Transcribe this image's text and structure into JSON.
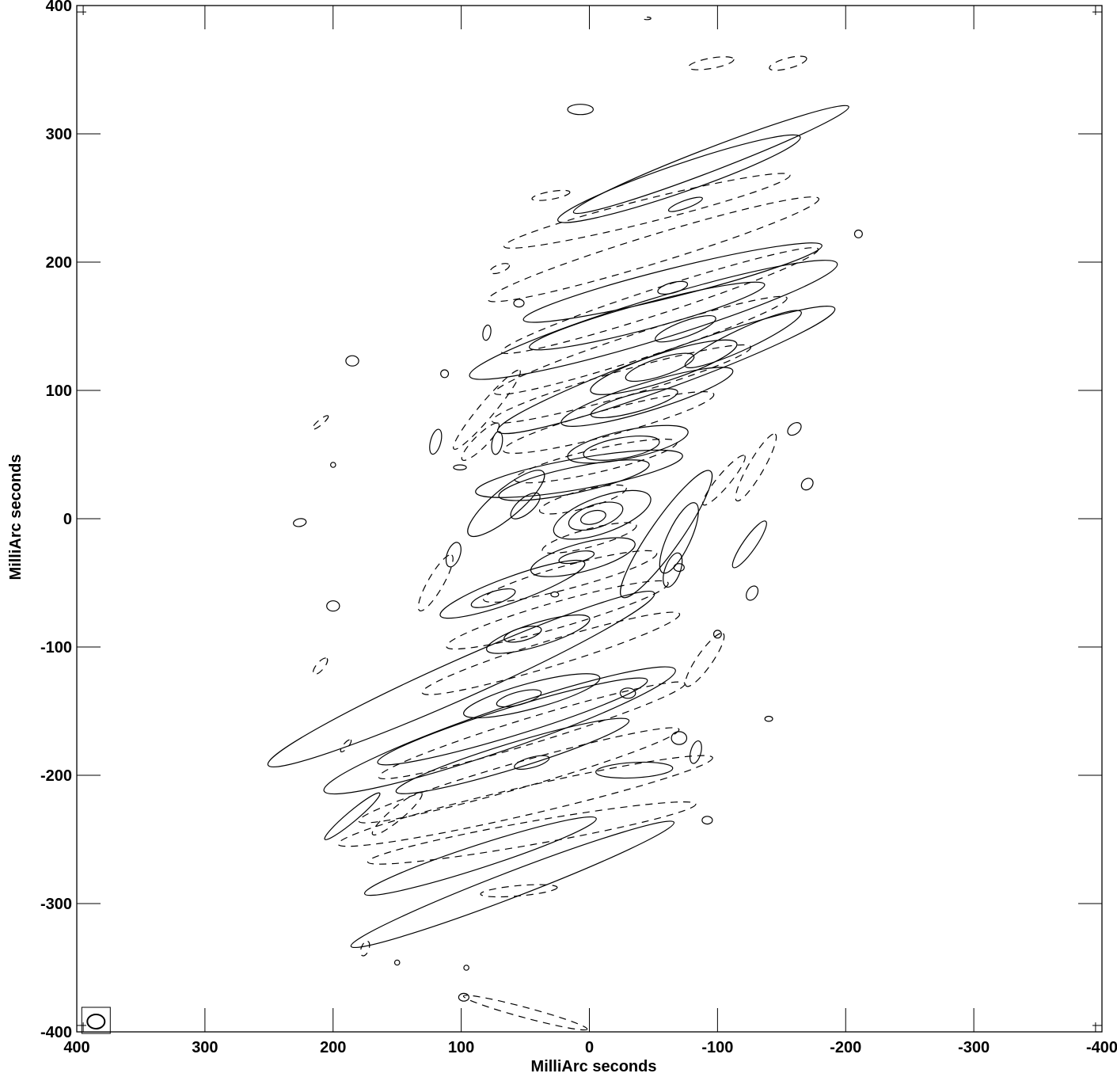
{
  "chart_data": {
    "type": "contour",
    "title": "",
    "xlabel": "MilliArc seconds",
    "ylabel": "MilliArc seconds",
    "xlim": [
      400,
      -400
    ],
    "ylim": [
      -400,
      400
    ],
    "x_ticks": [
      400,
      300,
      200,
      100,
      0,
      -100,
      -200,
      -300,
      -400
    ],
    "y_ticks": [
      -400,
      -300,
      -200,
      -100,
      0,
      100,
      200,
      300,
      400
    ],
    "x_tick_labels": [
      "400",
      "300",
      "200",
      "100",
      "0",
      "-100",
      "-200",
      "-300",
      "-400"
    ],
    "y_tick_labels": [
      "-400",
      "-300",
      "-200",
      "-100",
      "0",
      "100",
      "200",
      "300",
      "400"
    ],
    "beam": {
      "x": 385,
      "y": -392,
      "major": 14,
      "minor": 11
    },
    "contours": [
      {
        "level": "positive",
        "cx": -3,
        "cy": 1,
        "a": 10,
        "b": 5,
        "angle": -15
      },
      {
        "level": "positive",
        "cx": -5,
        "cy": 2,
        "a": 22,
        "b": 9,
        "angle": -18
      },
      {
        "level": "positive",
        "cx": -10,
        "cy": 3,
        "a": 40,
        "b": 14,
        "angle": -20
      },
      {
        "level": "positive",
        "cx": 10,
        "cy": -30,
        "a": 14,
        "b": 4,
        "angle": -12
      },
      {
        "level": "positive",
        "cx": 5,
        "cy": -30,
        "a": 42,
        "b": 11,
        "angle": -15
      },
      {
        "level": "positive",
        "cx": 12,
        "cy": 30,
        "a": 60,
        "b": 10,
        "angle": -12
      },
      {
        "level": "positive",
        "cx": 8,
        "cy": 35,
        "a": 82,
        "b": 12,
        "angle": -10
      },
      {
        "level": "positive",
        "cx": 50,
        "cy": 10,
        "a": 14,
        "b": 6,
        "angle": -40
      },
      {
        "level": "positive",
        "cx": 65,
        "cy": 12,
        "a": 38,
        "b": 11,
        "angle": -40
      },
      {
        "level": "positive",
        "cx": -70,
        "cy": -15,
        "a": 30,
        "b": 9,
        "angle": -65
      },
      {
        "level": "positive",
        "cx": -60,
        "cy": -12,
        "a": 60,
        "b": 12,
        "angle": -55
      },
      {
        "level": "positive",
        "cx": -25,
        "cy": 55,
        "a": 30,
        "b": 8,
        "angle": -10
      },
      {
        "level": "positive",
        "cx": -30,
        "cy": 58,
        "a": 48,
        "b": 11,
        "angle": -12
      },
      {
        "level": "positive",
        "cx": -35,
        "cy": 90,
        "a": 35,
        "b": 7,
        "angle": -15
      },
      {
        "level": "positive",
        "cx": -45,
        "cy": 95,
        "a": 70,
        "b": 11,
        "angle": -17
      },
      {
        "level": "positive",
        "cx": -55,
        "cy": 118,
        "a": 28,
        "b": 7,
        "angle": -18
      },
      {
        "level": "positive",
        "cx": -58,
        "cy": 118,
        "a": 60,
        "b": 11,
        "angle": -18
      },
      {
        "level": "positive",
        "cx": -60,
        "cy": 116,
        "a": 140,
        "b": 14,
        "angle": -20
      },
      {
        "level": "positive",
        "cx": -75,
        "cy": 148,
        "a": 25,
        "b": 6,
        "angle": -20
      },
      {
        "level": "positive",
        "cx": -45,
        "cy": 158,
        "a": 95,
        "b": 10,
        "angle": -15
      },
      {
        "level": "positive",
        "cx": -50,
        "cy": 155,
        "a": 150,
        "b": 16,
        "angle": -17
      },
      {
        "level": "positive",
        "cx": -65,
        "cy": 180,
        "a": 12,
        "b": 4,
        "angle": -15
      },
      {
        "level": "positive",
        "cx": -65,
        "cy": 184,
        "a": 120,
        "b": 11,
        "angle": -14
      },
      {
        "level": "positive",
        "cx": -70,
        "cy": 265,
        "a": 100,
        "b": 11,
        "angle": -19
      },
      {
        "level": "positive",
        "cx": -95,
        "cy": 280,
        "a": 115,
        "b": 9,
        "angle": -21
      },
      {
        "level": "positive",
        "cx": -75,
        "cy": 245,
        "a": 14,
        "b": 3,
        "angle": -20
      },
      {
        "level": "positive",
        "cx": 7,
        "cy": 319,
        "a": 10,
        "b": 4,
        "angle": 0
      },
      {
        "level": "positive",
        "cx": 55,
        "cy": -140,
        "a": 18,
        "b": 5,
        "angle": -15
      },
      {
        "level": "positive",
        "cx": 45,
        "cy": -138,
        "a": 55,
        "b": 10,
        "angle": -15
      },
      {
        "level": "positive",
        "cx": 52,
        "cy": -90,
        "a": 15,
        "b": 5,
        "angle": -15
      },
      {
        "level": "positive",
        "cx": 40,
        "cy": -90,
        "a": 42,
        "b": 9,
        "angle": -17
      },
      {
        "level": "positive",
        "cx": 75,
        "cy": -62,
        "a": 18,
        "b": 5,
        "angle": -18
      },
      {
        "level": "positive",
        "cx": 60,
        "cy": -55,
        "a": 60,
        "b": 10,
        "angle": -20
      },
      {
        "level": "positive",
        "cx": 45,
        "cy": -190,
        "a": 14,
        "b": 4,
        "angle": -15
      },
      {
        "level": "positive",
        "cx": 60,
        "cy": -185,
        "a": 95,
        "b": 10,
        "angle": -17
      },
      {
        "level": "positive",
        "cx": 60,
        "cy": -158,
        "a": 110,
        "b": 11,
        "angle": -17
      },
      {
        "level": "positive",
        "cx": 70,
        "cy": -165,
        "a": 145,
        "b": 16,
        "angle": -19
      },
      {
        "level": "positive",
        "cx": 100,
        "cy": -125,
        "a": 165,
        "b": 15,
        "angle": -24
      },
      {
        "level": "positive",
        "cx": -35,
        "cy": -196,
        "a": 30,
        "b": 6,
        "angle": -3
      },
      {
        "level": "positive",
        "cx": 85,
        "cy": -263,
        "a": 95,
        "b": 9,
        "angle": -18
      },
      {
        "level": "positive",
        "cx": 60,
        "cy": -285,
        "a": 135,
        "b": 10,
        "angle": -21
      },
      {
        "level": "positive",
        "cx": 185,
        "cy": -232,
        "a": 28,
        "b": 4,
        "angle": -40
      },
      {
        "level": "positive",
        "cx": 185,
        "cy": 123,
        "a": 5,
        "b": 4,
        "angle": 0
      },
      {
        "level": "positive",
        "cx": 226,
        "cy": -3,
        "a": 5,
        "b": 3,
        "angle": -10
      },
      {
        "level": "positive",
        "cx": 200,
        "cy": -68,
        "a": 5,
        "b": 4,
        "angle": 0
      },
      {
        "level": "positive",
        "cx": 120,
        "cy": 60,
        "a": 10,
        "b": 4,
        "angle": -75
      },
      {
        "level": "positive",
        "cx": 106,
        "cy": -28,
        "a": 10,
        "b": 5,
        "angle": -70
      },
      {
        "level": "positive",
        "cx": 72,
        "cy": 59,
        "a": 9,
        "b": 4,
        "angle": -80
      },
      {
        "level": "positive",
        "cx": 55,
        "cy": 168,
        "a": 4,
        "b": 3,
        "angle": 0
      },
      {
        "level": "positive",
        "cx": 80,
        "cy": 145,
        "a": 6,
        "b": 3,
        "angle": -80
      },
      {
        "level": "positive",
        "cx": -120,
        "cy": 140,
        "a": 50,
        "b": 8,
        "angle": -25
      },
      {
        "level": "positive",
        "cx": -125,
        "cy": -20,
        "a": 22,
        "b": 5,
        "angle": -55
      },
      {
        "level": "positive",
        "cx": -127,
        "cy": -58,
        "a": 6,
        "b": 4,
        "angle": -60
      },
      {
        "level": "positive",
        "cx": -160,
        "cy": 70,
        "a": 6,
        "b": 4,
        "angle": -40
      },
      {
        "level": "positive",
        "cx": -170,
        "cy": 27,
        "a": 5,
        "b": 4,
        "angle": -45
      },
      {
        "level": "positive",
        "cx": -210,
        "cy": 222,
        "a": 3,
        "b": 3,
        "angle": 0
      },
      {
        "level": "positive",
        "cx": -140,
        "cy": -156,
        "a": 3,
        "b": 2,
        "angle": 0
      },
      {
        "level": "positive",
        "cx": -92,
        "cy": -235,
        "a": 4,
        "b": 3,
        "angle": 0
      },
      {
        "level": "positive",
        "cx": -70,
        "cy": -171,
        "a": 6,
        "b": 5,
        "angle": 0
      },
      {
        "level": "positive",
        "cx": -83,
        "cy": -182,
        "a": 9,
        "b": 4,
        "angle": -75
      },
      {
        "level": "positive",
        "cx": -30,
        "cy": -136,
        "a": 6,
        "b": 4,
        "angle": 0
      },
      {
        "level": "positive",
        "cx": -100,
        "cy": -90,
        "a": 3,
        "b": 3,
        "angle": 0
      },
      {
        "level": "positive",
        "cx": -70,
        "cy": -38,
        "a": 4,
        "b": 3,
        "angle": 0
      },
      {
        "level": "positive",
        "cx": -65,
        "cy": -40,
        "a": 14,
        "b": 6,
        "angle": -70
      },
      {
        "level": "positive",
        "cx": 27,
        "cy": -59,
        "a": 3,
        "b": 2,
        "angle": 0
      },
      {
        "level": "positive",
        "cx": 101,
        "cy": 40,
        "a": 5,
        "b": 2,
        "angle": 0
      },
      {
        "level": "positive",
        "cx": 113,
        "cy": 113,
        "a": 3,
        "b": 3,
        "angle": 0
      },
      {
        "level": "positive",
        "cx": 150,
        "cy": -346,
        "a": 2,
        "b": 2,
        "angle": 0
      },
      {
        "level": "positive",
        "cx": 96,
        "cy": -350,
        "a": 2,
        "b": 2,
        "angle": 0
      },
      {
        "level": "positive",
        "cx": 98,
        "cy": -373,
        "a": 4,
        "b": 3,
        "angle": 0
      },
      {
        "level": "positive",
        "cx": 200,
        "cy": 42,
        "a": 2,
        "b": 2,
        "angle": 0
      },
      {
        "level": "negative",
        "cx": 5,
        "cy": 15,
        "a": 35,
        "b": 7,
        "angle": -15
      },
      {
        "level": "negative",
        "cx": 0,
        "cy": -15,
        "a": 38,
        "b": 7,
        "angle": -15
      },
      {
        "level": "negative",
        "cx": -5,
        "cy": 45,
        "a": 65,
        "b": 9,
        "angle": -13
      },
      {
        "level": "negative",
        "cx": 15,
        "cy": -45,
        "a": 70,
        "b": 9,
        "angle": -15
      },
      {
        "level": "negative",
        "cx": -15,
        "cy": 75,
        "a": 85,
        "b": 10,
        "angle": -15
      },
      {
        "level": "negative",
        "cx": 25,
        "cy": -75,
        "a": 90,
        "b": 10,
        "angle": -16
      },
      {
        "level": "negative",
        "cx": -25,
        "cy": 105,
        "a": 105,
        "b": 10,
        "angle": -16
      },
      {
        "level": "negative",
        "cx": 30,
        "cy": -105,
        "a": 105,
        "b": 10,
        "angle": -17
      },
      {
        "level": "negative",
        "cx": -40,
        "cy": 135,
        "a": 120,
        "b": 10,
        "angle": -18
      },
      {
        "level": "negative",
        "cx": 45,
        "cy": -165,
        "a": 125,
        "b": 10,
        "angle": -17
      },
      {
        "level": "negative",
        "cx": -55,
        "cy": 170,
        "a": 130,
        "b": 10,
        "angle": -18
      },
      {
        "level": "negative",
        "cx": 55,
        "cy": -200,
        "a": 130,
        "b": 10,
        "angle": -16
      },
      {
        "level": "negative",
        "cx": -50,
        "cy": 210,
        "a": 135,
        "b": 11,
        "angle": -17
      },
      {
        "level": "negative",
        "cx": 50,
        "cy": -220,
        "a": 150,
        "b": 11,
        "angle": -13
      },
      {
        "level": "negative",
        "cx": -45,
        "cy": 240,
        "a": 115,
        "b": 9,
        "angle": -14
      },
      {
        "level": "negative",
        "cx": 45,
        "cy": -245,
        "a": 130,
        "b": 9,
        "angle": -10
      },
      {
        "level": "negative",
        "cx": 30,
        "cy": 252,
        "a": 15,
        "b": 3,
        "angle": -10
      },
      {
        "level": "negative",
        "cx": 55,
        "cy": -290,
        "a": 30,
        "b": 4,
        "angle": -5
      },
      {
        "level": "negative",
        "cx": -95,
        "cy": 355,
        "a": 18,
        "b": 4,
        "angle": -10
      },
      {
        "level": "negative",
        "cx": -155,
        "cy": 355,
        "a": 15,
        "b": 4,
        "angle": -15
      },
      {
        "level": "negative",
        "cx": 50,
        "cy": -385,
        "a": 50,
        "b": 4,
        "angle": 15
      },
      {
        "level": "negative",
        "cx": -45,
        "cy": 390,
        "a": 3,
        "b": 1,
        "angle": 0
      },
      {
        "level": "negative",
        "cx": 85,
        "cy": 60,
        "a": 20,
        "b": 5,
        "angle": -45
      },
      {
        "level": "negative",
        "cx": 80,
        "cy": 85,
        "a": 40,
        "b": 6,
        "angle": -50
      },
      {
        "level": "negative",
        "cx": -105,
        "cy": 30,
        "a": 25,
        "b": 5,
        "angle": -50
      },
      {
        "level": "negative",
        "cx": -130,
        "cy": 40,
        "a": 30,
        "b": 6,
        "angle": -60
      },
      {
        "level": "negative",
        "cx": -90,
        "cy": -110,
        "a": 25,
        "b": 6,
        "angle": -55
      },
      {
        "level": "negative",
        "cx": 120,
        "cy": -50,
        "a": 25,
        "b": 6,
        "angle": -60
      },
      {
        "level": "negative",
        "cx": 150,
        "cy": -230,
        "a": 25,
        "b": 5,
        "angle": -40
      },
      {
        "level": "negative",
        "cx": 175,
        "cy": -335,
        "a": 6,
        "b": 3,
        "angle": -70
      },
      {
        "level": "negative",
        "cx": 210,
        "cy": 75,
        "a": 8,
        "b": 2,
        "angle": -40
      },
      {
        "level": "negative",
        "cx": 210,
        "cy": -115,
        "a": 8,
        "b": 3,
        "angle": -50
      },
      {
        "level": "negative",
        "cx": 190,
        "cy": -177,
        "a": 6,
        "b": 2,
        "angle": -50
      },
      {
        "level": "negative",
        "cx": 70,
        "cy": 195,
        "a": 8,
        "b": 3,
        "angle": -20
      }
    ]
  }
}
